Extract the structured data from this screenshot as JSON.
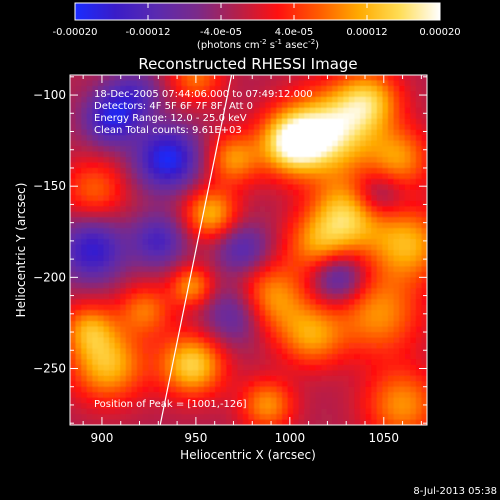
{
  "chart_data": {
    "type": "heatmap",
    "title": "Reconstructed RHESSI Image",
    "xlabel": "Heliocentric X (arcsec)",
    "ylabel": "Heliocentric Y (arcsec)",
    "xlim": [
      883,
      1073
    ],
    "ylim": [
      -281,
      -89
    ],
    "x_ticks": [
      900,
      950,
      1000,
      1050
    ],
    "y_ticks": [
      -100,
      -150,
      -200,
      -250
    ],
    "colorbar": {
      "min": -0.0002,
      "max": 0.0002,
      "tick_values": [
        -0.0002,
        -0.00012,
        -4e-05,
        4e-05,
        0.00012,
        0.0002
      ],
      "tick_labels": [
        "-0.00020",
        "-0.00012",
        "-4.0e-05",
        "4.0e-05",
        "0.00012",
        "0.00020"
      ],
      "unit_text": "(photons cm",
      "unit_sup1": "-2",
      "unit_text2": " s",
      "unit_sup2": "-1",
      "unit_text3": " asec",
      "unit_sup3": "-2",
      "unit_text4": ")",
      "colors": [
        "#1a2cff",
        "#3a1cc8",
        "#5a2ab0",
        "#7a2a8a",
        "#b4204a",
        "#ff1010",
        "#ff5a00",
        "#ffaa00",
        "#ffdd55",
        "#ffffff"
      ]
    },
    "annotations": [
      "18-Dec-2005 07:44:06.000 to 07:49:12.000",
      "Detectors: 4F 5F 6F 7F 8F, Att 0",
      "Energy Range: 12.0 - 25.0 keV",
      "Clean     Total counts: 9.61E+03"
    ],
    "peak_text": "Position of Peak = [1001,-126]",
    "peak": [
      1001,
      -126
    ],
    "limb_line": [
      [
        931,
        -281
      ],
      [
        969,
        -89
      ]
    ],
    "blobs": [
      [
        1022,
        -120,
        16,
        0.95
      ],
      [
        1001,
        -126,
        12,
        1.0
      ],
      [
        1042,
        -103,
        12,
        0.7
      ],
      [
        1058,
        -135,
        12,
        0.6
      ],
      [
        1063,
        -182,
        14,
        0.7
      ],
      [
        1032,
        -165,
        14,
        0.85
      ],
      [
        1047,
        -220,
        16,
        0.6
      ],
      [
        989,
        -212,
        14,
        0.7
      ],
      [
        1012,
        -232,
        12,
        0.6
      ],
      [
        903,
        -248,
        14,
        0.75
      ],
      [
        893,
        -228,
        10,
        0.55
      ],
      [
        948,
        -248,
        12,
        0.85
      ],
      [
        948,
        -205,
        8,
        0.6
      ],
      [
        923,
        -218,
        10,
        0.5
      ],
      [
        958,
        -165,
        10,
        0.7
      ],
      [
        970,
        -135,
        10,
        0.6
      ],
      [
        896,
        -152,
        12,
        0.45
      ],
      [
        950,
        -90,
        10,
        0.5
      ],
      [
        988,
        -270,
        10,
        0.6
      ],
      [
        1060,
        -270,
        14,
        0.6
      ],
      [
        1015,
        -182,
        12,
        0.55
      ],
      [
        895,
        -185,
        12,
        -0.7
      ],
      [
        935,
        -135,
        12,
        -0.85
      ],
      [
        905,
        -113,
        10,
        -0.7
      ],
      [
        972,
        -220,
        12,
        -0.55
      ],
      [
        1026,
        -200,
        10,
        -0.6
      ],
      [
        1046,
        -155,
        10,
        -0.5
      ],
      [
        930,
        -180,
        10,
        -0.55
      ],
      [
        917,
        -100,
        10,
        -0.45
      ],
      [
        975,
        -185,
        10,
        -0.5
      ]
    ]
  },
  "footer": {
    "date": "8-Jul-2013 05:38"
  }
}
